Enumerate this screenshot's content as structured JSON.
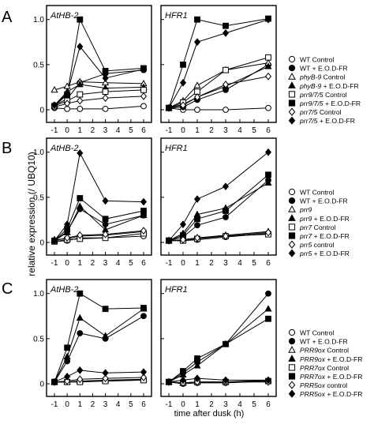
{
  "figure": {
    "y_label": "relative expression (/ UBQ10)",
    "x_label": "time after dusk (h)"
  },
  "chart_data": [
    {
      "type": "line",
      "panel": "A",
      "legend": [
        {
          "label": "WT Control",
          "marker": "circle-open"
        },
        {
          "label": "WT + E.O.D-FR",
          "marker": "circle-filled"
        },
        {
          "label": "phyB-9 Control",
          "marker": "triangle-open"
        },
        {
          "label": "phyB-9 + E.O.D-FR",
          "marker": "triangle-filled"
        },
        {
          "label": "prr9/7/5 Control",
          "marker": "square-open"
        },
        {
          "label": "prr9/7/5 + E.O.D-FR",
          "marker": "square-filled"
        },
        {
          "label": "prr7/5 Control",
          "marker": "diamond-open"
        },
        {
          "label": "prr7/5 + E.O.D-FR",
          "marker": "diamond-filled"
        }
      ],
      "subplots": [
        {
          "title": "AtHB-2",
          "x": [
            -1,
            0,
            1,
            3,
            6
          ],
          "xticks": [
            "-1",
            "0",
            "1",
            "2",
            "3",
            "4",
            "5",
            "6"
          ],
          "yticks": [
            "0",
            "0.5",
            "1.0"
          ],
          "ylim": [
            0,
            1.05
          ],
          "series": [
            {
              "name": "WT Control",
              "values": [
                0.02,
                0.01,
                0.01,
                0.01,
                0.04
              ]
            },
            {
              "name": "WT + E.O.D-FR",
              "values": [
                0.05,
                0.12,
                0.3,
                0.4,
                0.44
              ]
            },
            {
              "name": "phyB-9 Control",
              "values": [
                0.22,
                0.26,
                0.31,
                0.3,
                0.29
              ]
            },
            {
              "name": "phyB-9 + E.O.D-FR",
              "values": [
                0.05,
                0.2,
                0.28,
                0.24,
                0.25
              ]
            },
            {
              "name": "prr9/7/5 Control",
              "values": [
                0.04,
                0.1,
                0.17,
                0.2,
                0.22
              ]
            },
            {
              "name": "prr9/7/5 + E.O.D-FR",
              "values": [
                0.04,
                0.17,
                1.0,
                0.43,
                0.46
              ]
            },
            {
              "name": "prr7/5 Control",
              "values": [
                0.03,
                0.07,
                0.1,
                0.13,
                0.15
              ]
            },
            {
              "name": "prr7/5 + E.O.D-FR",
              "values": [
                0.05,
                0.18,
                0.7,
                0.35,
                0.45
              ]
            }
          ]
        },
        {
          "title": "HFR1",
          "x": [
            -1,
            0,
            1,
            3,
            6
          ],
          "xticks": [
            "-1",
            "0",
            "1",
            "2",
            "3",
            "4",
            "5",
            "6"
          ],
          "yticks": [
            "0",
            "0.5",
            "1.0"
          ],
          "ylim": [
            0,
            1.05
          ],
          "series": [
            {
              "name": "WT Control",
              "values": [
                0.02,
                0.0,
                0.0,
                0.0,
                0.02
              ]
            },
            {
              "name": "WT + E.O.D-FR",
              "values": [
                0.02,
                0.03,
                0.11,
                0.22,
                0.5
              ]
            },
            {
              "name": "phyB-9 Control",
              "values": [
                0.02,
                0.1,
                0.27,
                0.44,
                0.52
              ]
            },
            {
              "name": "phyB-9 + E.O.D-FR",
              "values": [
                0.02,
                0.06,
                0.14,
                0.26,
                0.48
              ]
            },
            {
              "name": "prr9/7/5 Control",
              "values": [
                0.02,
                0.08,
                0.2,
                0.44,
                0.58
              ]
            },
            {
              "name": "prr9/7/5 + E.O.D-FR",
              "values": [
                0.02,
                0.5,
                1.0,
                0.93,
                1.01
              ]
            },
            {
              "name": "prr7/5 Control",
              "values": [
                0.02,
                0.05,
                0.14,
                0.28,
                0.37
              ]
            },
            {
              "name": "prr7/5 + E.O.D-FR",
              "values": [
                0.02,
                0.3,
                0.75,
                0.85,
                1.0
              ]
            }
          ]
        }
      ]
    },
    {
      "type": "line",
      "panel": "B",
      "legend": [
        {
          "label": "WT Control",
          "marker": "circle-open"
        },
        {
          "label": "WT + E.O.D-FR",
          "marker": "circle-filled"
        },
        {
          "label": "prr9",
          "marker": "triangle-open"
        },
        {
          "label": "prr9 + E.O.D-FR",
          "marker": "triangle-filled"
        },
        {
          "label": "prr7 Control",
          "marker": "square-open"
        },
        {
          "label": "prr7 + E.O.D-FR",
          "marker": "square-filled"
        },
        {
          "label": "prr5 control",
          "marker": "diamond-open"
        },
        {
          "label": "prr5 + E.O.D-FR",
          "marker": "diamond-filled"
        }
      ],
      "subplots": [
        {
          "title": "AtHB-2",
          "x": [
            -1,
            0,
            1,
            3,
            6
          ],
          "xticks": [
            "-1",
            "0",
            "1",
            "2",
            "3",
            "4",
            "5",
            "6"
          ],
          "yticks": [
            "0",
            "0.5",
            "1.0"
          ],
          "ylim": [
            0,
            1.05
          ],
          "series": [
            {
              "name": "WT Control",
              "values": [
                0.01,
                0.02,
                0.05,
                0.05,
                0.07
              ]
            },
            {
              "name": "WT + E.O.D-FR",
              "values": [
                0.02,
                0.12,
                0.37,
                0.2,
                0.3
              ]
            },
            {
              "name": "prr9",
              "values": [
                0.03,
                0.04,
                0.07,
                0.08,
                0.12
              ]
            },
            {
              "name": "prr9 + E.O.D-FR",
              "values": [
                0.02,
                0.11,
                0.4,
                0.14,
                0.3
              ]
            },
            {
              "name": "prr7 Control",
              "values": [
                0.01,
                0.03,
                0.04,
                0.05,
                0.1
              ]
            },
            {
              "name": "prr7 + E.O.D-FR",
              "values": [
                0.02,
                0.15,
                0.49,
                0.26,
                0.35
              ]
            },
            {
              "name": "prr5 control",
              "values": [
                0.02,
                0.05,
                0.08,
                0.09,
                0.13
              ]
            },
            {
              "name": "prr5 + E.O.D-FR",
              "values": [
                0.02,
                0.2,
                0.99,
                0.46,
                0.45
              ]
            }
          ]
        },
        {
          "title": "HFR1",
          "x": [
            -1,
            0,
            1,
            3,
            6
          ],
          "xticks": [
            "-1",
            "0",
            "1",
            "2",
            "3",
            "4",
            "5",
            "6"
          ],
          "yticks": [
            "0",
            "0.5",
            "1.0"
          ],
          "ylim": [
            0,
            1.05
          ],
          "series": [
            {
              "name": "WT Control",
              "values": [
                0.02,
                0.02,
                0.03,
                0.06,
                0.1
              ]
            },
            {
              "name": "WT + E.O.D-FR",
              "values": [
                0.02,
                0.06,
                0.19,
                0.28,
                0.69
              ]
            },
            {
              "name": "prr9",
              "values": [
                0.02,
                0.03,
                0.05,
                0.08,
                0.12
              ]
            },
            {
              "name": "prr9 + E.O.D-FR",
              "values": [
                0.02,
                0.1,
                0.31,
                0.38,
                0.66
              ]
            },
            {
              "name": "prr7 Control",
              "values": [
                0.02,
                0.02,
                0.04,
                0.07,
                0.09
              ]
            },
            {
              "name": "prr7 + E.O.D-FR",
              "values": [
                0.02,
                0.08,
                0.26,
                0.35,
                0.75
              ]
            },
            {
              "name": "prr5 control",
              "values": [
                0.02,
                0.03,
                0.05,
                0.07,
                0.11
              ]
            },
            {
              "name": "prr5 + E.O.D-FR",
              "values": [
                0.02,
                0.2,
                0.48,
                0.62,
                1.0
              ]
            }
          ]
        }
      ]
    },
    {
      "type": "line",
      "panel": "C",
      "legend": [
        {
          "label": "WT Control",
          "marker": "circle-open"
        },
        {
          "label": "WT + E.O.D-FR",
          "marker": "circle-filled"
        },
        {
          "label": "PRR9ox Control",
          "marker": "triangle-open"
        },
        {
          "label": "PRR9ox + E.O.D-FR",
          "marker": "triangle-filled"
        },
        {
          "label": "PRR7ox Control",
          "marker": "square-open"
        },
        {
          "label": "PRR7ox + E.O.D-FR",
          "marker": "square-filled"
        },
        {
          "label": "PRR5ox control",
          "marker": "diamond-open"
        },
        {
          "label": "PRR5ox + E.O.D-FR",
          "marker": "diamond-filled"
        }
      ],
      "subplots": [
        {
          "title": "AtHB-2",
          "x": [
            -1,
            0,
            1,
            3,
            6
          ],
          "xticks": [
            "-1",
            "0",
            "1",
            "2",
            "3",
            "4",
            "5",
            "6"
          ],
          "yticks": [
            "0",
            "0.5",
            "1.0"
          ],
          "ylim": [
            0,
            1.05
          ],
          "series": [
            {
              "name": "WT Control",
              "values": [
                0.02,
                0.02,
                0.03,
                0.03,
                0.05
              ]
            },
            {
              "name": "WT + E.O.D-FR",
              "values": [
                0.02,
                0.25,
                0.56,
                0.5,
                0.75
              ]
            },
            {
              "name": "PRR9ox Control",
              "values": [
                0.02,
                0.02,
                0.03,
                0.04,
                0.05
              ]
            },
            {
              "name": "PRR9ox + E.O.D-FR",
              "values": [
                0.02,
                0.3,
                0.73,
                0.53,
                0.83
              ]
            },
            {
              "name": "PRR7ox Control",
              "values": [
                0.02,
                0.02,
                0.02,
                0.03,
                0.04
              ]
            },
            {
              "name": "PRR7ox + E.O.D-FR",
              "values": [
                0.02,
                0.4,
                1.0,
                0.83,
                0.84
              ]
            },
            {
              "name": "PRR5ox control",
              "values": [
                0.02,
                0.03,
                0.05,
                0.06,
                0.07
              ]
            },
            {
              "name": "PRR5ox + E.O.D-FR",
              "values": [
                0.02,
                0.08,
                0.15,
                0.12,
                0.13
              ]
            }
          ]
        },
        {
          "title": "HFR1",
          "x": [
            -1,
            0,
            1,
            3,
            6
          ],
          "xticks": [
            "-1",
            "0",
            "1",
            "2",
            "3",
            "4",
            "5",
            "6"
          ],
          "yticks": [
            "0",
            "0.5",
            "1.0"
          ],
          "ylim": [
            0,
            1.05
          ],
          "series": [
            {
              "name": "WT Control",
              "values": [
                0.02,
                0.0,
                0.01,
                0.01,
                0.03
              ]
            },
            {
              "name": "WT + E.O.D-FR",
              "values": [
                0.02,
                0.12,
                0.24,
                0.44,
                1.0
              ]
            },
            {
              "name": "PRR9ox Control",
              "values": [
                0.02,
                0.01,
                0.02,
                0.02,
                0.04
              ]
            },
            {
              "name": "PRR9ox + E.O.D-FR",
              "values": [
                0.02,
                0.1,
                0.2,
                0.44,
                0.83
              ]
            },
            {
              "name": "PRR7ox Control",
              "values": [
                0.02,
                0.01,
                0.02,
                0.02,
                0.03
              ]
            },
            {
              "name": "PRR7ox + E.O.D-FR",
              "values": [
                0.02,
                0.14,
                0.28,
                0.44,
                0.72
              ]
            },
            {
              "name": "PRR5ox control",
              "values": [
                0.02,
                0.01,
                0.02,
                0.02,
                0.02
              ]
            },
            {
              "name": "PRR5ox + E.O.D-FR",
              "values": [
                0.02,
                0.04,
                0.06,
                0.04,
                0.04
              ]
            }
          ]
        }
      ]
    }
  ]
}
